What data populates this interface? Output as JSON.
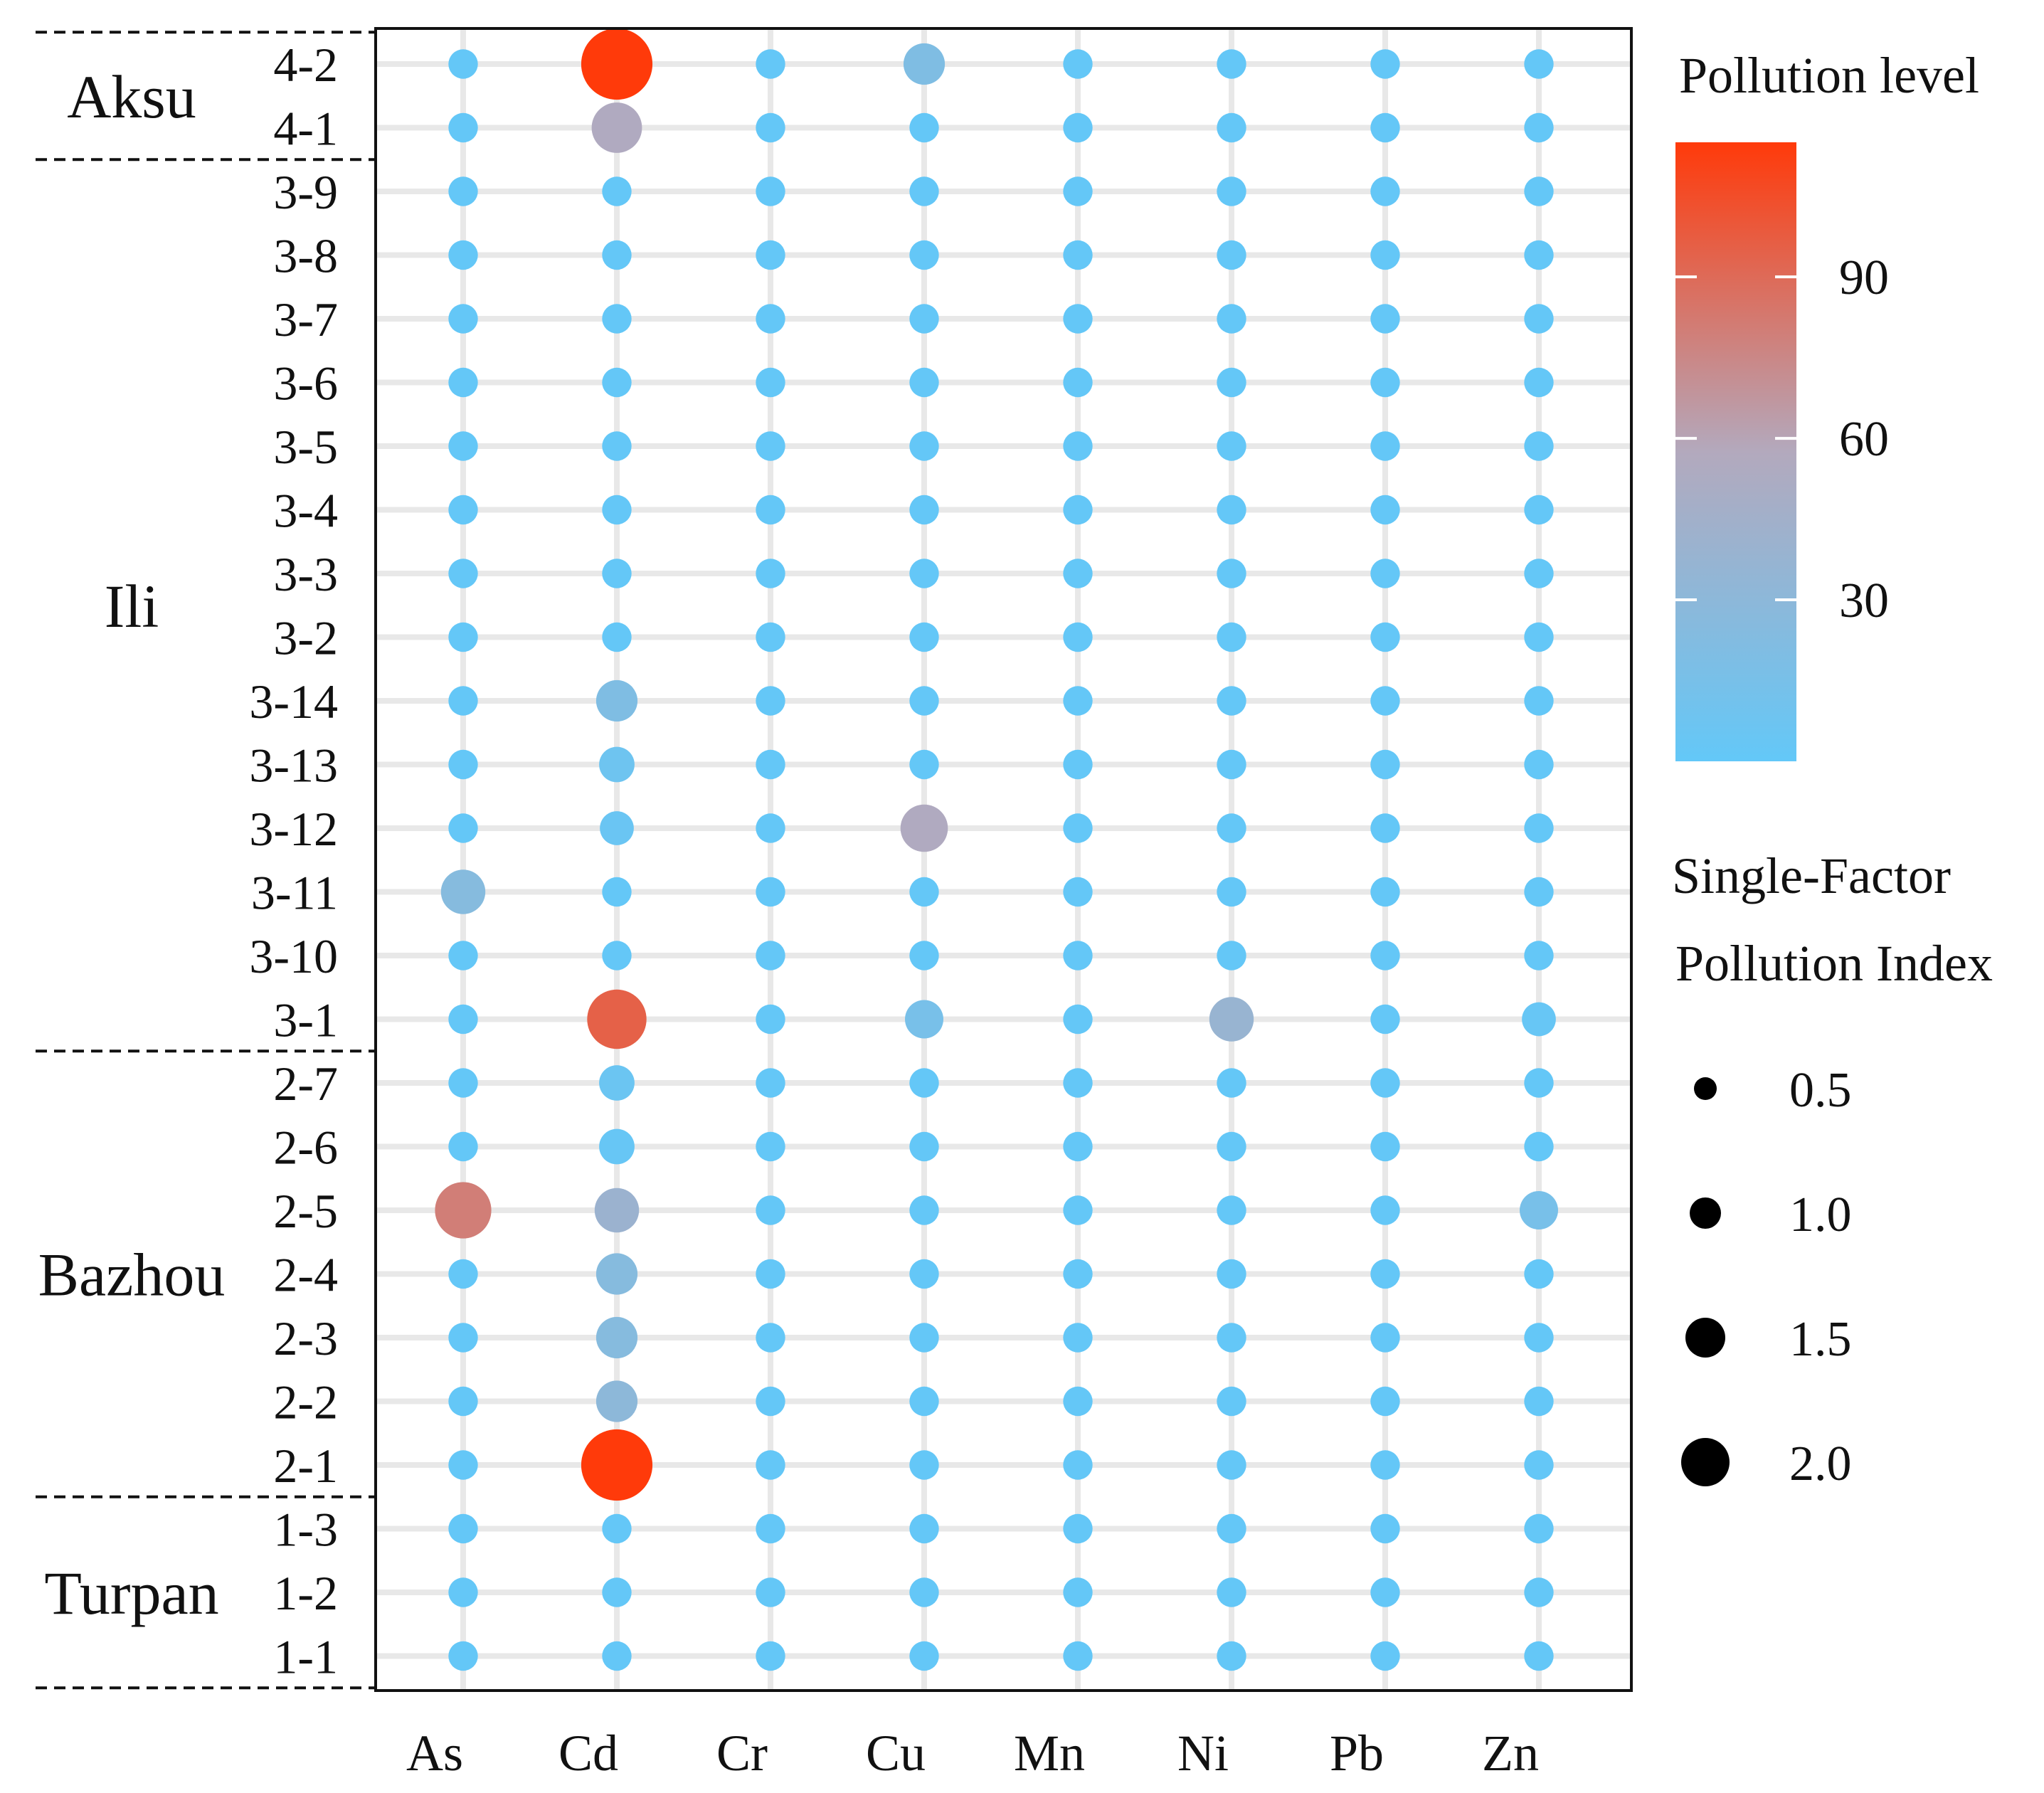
{
  "chart_data": {
    "type": "scatter",
    "subtype": "bubble-grid",
    "x_categories": [
      "As",
      "Cd",
      "Cr",
      "Cu",
      "Mn",
      "Ni",
      "Pb",
      "Zn"
    ],
    "y_categories": [
      "4-2",
      "4-1",
      "3-9",
      "3-8",
      "3-7",
      "3-6",
      "3-5",
      "3-4",
      "3-3",
      "3-2",
      "3-14",
      "3-13",
      "3-12",
      "3-11",
      "3-10",
      "3-1",
      "2-7",
      "2-6",
      "2-5",
      "2-4",
      "2-3",
      "2-2",
      "2-1",
      "1-3",
      "1-2",
      "1-1"
    ],
    "groups": [
      {
        "name": "Aksu",
        "rows": [
          "4-2",
          "4-1"
        ]
      },
      {
        "name": "Ili",
        "rows": [
          "3-9",
          "3-8",
          "3-7",
          "3-6",
          "3-5",
          "3-4",
          "3-3",
          "3-2",
          "3-14",
          "3-13",
          "3-12",
          "3-11",
          "3-10",
          "3-1"
        ]
      },
      {
        "name": "Bazhou",
        "rows": [
          "2-7",
          "2-6",
          "2-5",
          "2-4",
          "2-3",
          "2-2",
          "2-1"
        ]
      },
      {
        "name": "Turpan",
        "rows": [
          "1-3",
          "1-2",
          "1-1"
        ]
      }
    ],
    "legend_color": {
      "title": "Pollution level",
      "ticks": [
        30,
        60,
        90
      ],
      "range": [
        0,
        115
      ],
      "low_color": "#63c8f8",
      "mid_color": "#b3a9bd",
      "high_color": "#ff3a0a"
    },
    "legend_size": {
      "title_line1": "Single-Factor",
      "title_line2": "Pollution Index",
      "values": [
        0.5,
        1.0,
        1.5,
        2.0
      ],
      "labels": [
        "0.5",
        "1.0",
        "1.5",
        "2.0"
      ]
    },
    "default_point": {
      "color_level": 1,
      "size_index": 0.7
    },
    "highlights": [
      {
        "row": "4-2",
        "col": "Cd",
        "color_level": 115,
        "size_index": 2.1
      },
      {
        "row": "4-2",
        "col": "Cu",
        "color_level": 20,
        "size_index": 1.1
      },
      {
        "row": "4-1",
        "col": "Cd",
        "color_level": 55,
        "size_index": 1.4
      },
      {
        "row": "3-14",
        "col": "Cd",
        "color_level": 20,
        "size_index": 1.1
      },
      {
        "row": "3-13",
        "col": "Cd",
        "color_level": 8,
        "size_index": 0.9
      },
      {
        "row": "3-12",
        "col": "Cd",
        "color_level": 5,
        "size_index": 0.85
      },
      {
        "row": "3-12",
        "col": "Cu",
        "color_level": 55,
        "size_index": 1.3
      },
      {
        "row": "3-11",
        "col": "As",
        "color_level": 25,
        "size_index": 1.2
      },
      {
        "row": "3-1",
        "col": "Cd",
        "color_level": 95,
        "size_index": 1.7
      },
      {
        "row": "3-1",
        "col": "Cu",
        "color_level": 15,
        "size_index": 1.0
      },
      {
        "row": "3-1",
        "col": "Ni",
        "color_level": 38,
        "size_index": 1.2
      },
      {
        "row": "3-1",
        "col": "Zn",
        "color_level": 3,
        "size_index": 0.85
      },
      {
        "row": "2-7",
        "col": "Cd",
        "color_level": 6,
        "size_index": 0.9
      },
      {
        "row": "2-6",
        "col": "Cd",
        "color_level": 3,
        "size_index": 0.9
      },
      {
        "row": "2-5",
        "col": "As",
        "color_level": 80,
        "size_index": 1.6
      },
      {
        "row": "2-5",
        "col": "Cd",
        "color_level": 40,
        "size_index": 1.2
      },
      {
        "row": "2-5",
        "col": "Zn",
        "color_level": 15,
        "size_index": 1.0
      },
      {
        "row": "2-4",
        "col": "Cd",
        "color_level": 25,
        "size_index": 1.1
      },
      {
        "row": "2-3",
        "col": "Cd",
        "color_level": 25,
        "size_index": 1.1
      },
      {
        "row": "2-2",
        "col": "Cd",
        "color_level": 30,
        "size_index": 1.1
      },
      {
        "row": "2-1",
        "col": "Cd",
        "color_level": 115,
        "size_index": 2.1
      }
    ]
  }
}
